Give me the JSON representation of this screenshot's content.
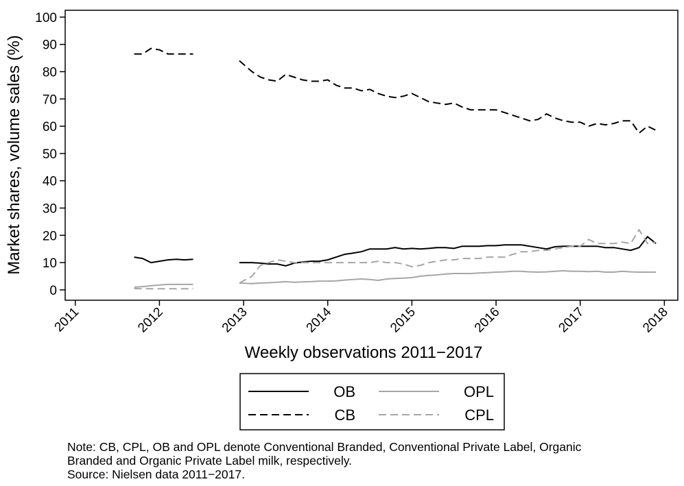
{
  "chart_data": {
    "type": "line",
    "xlabel": "Weekly observations 2011−2017",
    "ylabel": "Market shares, volume sales (%)",
    "x": [
      2011.7,
      2011.8,
      2011.9,
      2012.0,
      2012.1,
      2012.2,
      2012.3,
      2012.4,
      2012.7,
      2012.95,
      2013.1,
      2013.2,
      2013.3,
      2013.4,
      2013.5,
      2013.6,
      2013.7,
      2013.8,
      2013.9,
      2014.0,
      2014.1,
      2014.2,
      2014.3,
      2014.4,
      2014.5,
      2014.6,
      2014.7,
      2014.8,
      2014.9,
      2015.0,
      2015.1,
      2015.2,
      2015.3,
      2015.4,
      2015.5,
      2015.6,
      2015.7,
      2015.8,
      2015.9,
      2016.0,
      2016.1,
      2016.2,
      2016.3,
      2016.4,
      2016.5,
      2016.6,
      2016.7,
      2016.8,
      2016.9,
      2017.0,
      2017.1,
      2017.2,
      2017.3,
      2017.4,
      2017.5,
      2017.6,
      2017.7,
      2017.8,
      2017.9
    ],
    "series": [
      {
        "name": "OB",
        "color": "#000000",
        "dash": "solid",
        "values": [
          12,
          11.5,
          10,
          10.5,
          11,
          11.2,
          11,
          11.2,
          null,
          10,
          10,
          9.8,
          9.5,
          9.5,
          8.8,
          9.8,
          10.2,
          10.5,
          10.5,
          11,
          12,
          13,
          13.5,
          14,
          15,
          15,
          15,
          15.5,
          15,
          15.2,
          15,
          15.2,
          15.5,
          15.5,
          15.2,
          16,
          16,
          16,
          16.2,
          16.2,
          16.5,
          16.5,
          16.5,
          16,
          15.5,
          15,
          15.8,
          16,
          16,
          16,
          16,
          16,
          15.5,
          15.5,
          15,
          14.5,
          15.5,
          19.5,
          17
        ]
      },
      {
        "name": "CB",
        "color": "#000000",
        "dash": "dashed",
        "values": [
          86.5,
          86.5,
          88.5,
          88,
          86.5,
          86.5,
          86.5,
          86.5,
          null,
          84,
          80,
          78,
          77,
          76.5,
          79,
          78,
          77,
          76.5,
          76.5,
          77,
          75,
          74,
          74,
          73,
          73.5,
          72,
          71,
          70.5,
          71,
          72,
          70.5,
          69,
          68.5,
          68,
          68.5,
          67,
          66,
          66,
          66,
          66,
          65,
          64,
          63,
          62,
          62.5,
          64.5,
          63,
          62,
          61.5,
          61.5,
          60,
          61,
          60.5,
          61,
          62,
          62,
          57.5,
          60,
          58.5
        ]
      },
      {
        "name": "OPL",
        "color": "#a6a6a6",
        "dash": "solid",
        "values": [
          1,
          1.2,
          1.5,
          1.8,
          2,
          2,
          2,
          2,
          null,
          2.5,
          2.3,
          2.5,
          2.6,
          2.8,
          3,
          2.8,
          2.9,
          3,
          3.2,
          3.2,
          3.3,
          3.6,
          3.8,
          4,
          3.8,
          3.5,
          4,
          4.2,
          4.3,
          4.5,
          5,
          5.3,
          5.5,
          5.8,
          6,
          6,
          6,
          6.2,
          6.3,
          6.5,
          6.6,
          6.8,
          6.8,
          6.6,
          6.5,
          6.6,
          6.8,
          7,
          6.8,
          6.8,
          6.7,
          6.8,
          6.5,
          6.5,
          6.8,
          6.6,
          6.5,
          6.5,
          6.5
        ]
      },
      {
        "name": "CPL",
        "color": "#a6a6a6",
        "dash": "dashed",
        "values": [
          0.5,
          0.4,
          0.4,
          0.4,
          0.4,
          0.4,
          0.4,
          0.4,
          null,
          2.5,
          5,
          9,
          10,
          11,
          10.5,
          10,
          10,
          10,
          10,
          10,
          10,
          10,
          10,
          10,
          10,
          10.5,
          10,
          10,
          9.5,
          8.5,
          9,
          10,
          10.5,
          11,
          11,
          11.5,
          11.5,
          11.5,
          12,
          12,
          12,
          13,
          14,
          14,
          14.5,
          14.5,
          15,
          15.5,
          16,
          16,
          18.5,
          17,
          17,
          17,
          17.5,
          17,
          22,
          17,
          17.5
        ]
      }
    ],
    "xlim": [
      2010.88,
      2018.16
    ],
    "xticks": [
      2011,
      2012,
      2013,
      2014,
      2015,
      2016,
      2017,
      2018
    ],
    "ylim": [
      -3.8,
      102.5
    ],
    "yticks": [
      0,
      10,
      20,
      30,
      40,
      50,
      60,
      70,
      80,
      90,
      100
    ],
    "notes": [
      "Note: CB, CPL, OB and OPL denote Conventional Branded, Conventional Private Label, Organic",
      "Branded and Organic Private Label milk, respectively.",
      "Source: Nielsen data 2011−2017."
    ]
  }
}
